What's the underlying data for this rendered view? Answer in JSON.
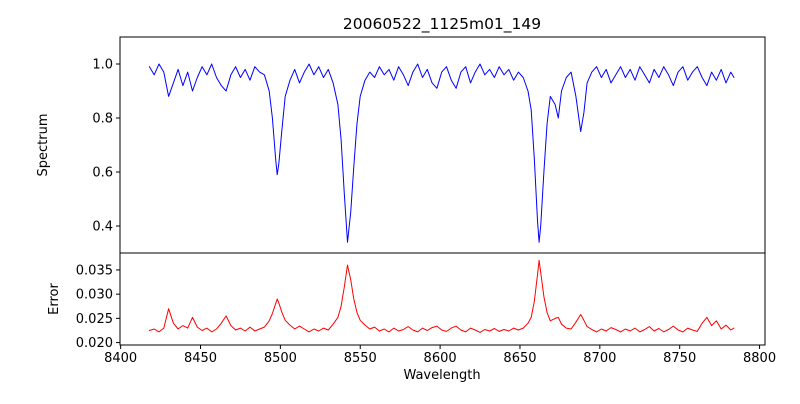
{
  "chart_data": {
    "type": "line",
    "title": "20060522_1125m01_149",
    "xlabel": "Wavelength",
    "xlim": [
      8399.6,
      8803.4
    ],
    "xticks": [
      8400,
      8450,
      8500,
      8550,
      8600,
      8650,
      8700,
      8750,
      8800
    ],
    "xtick_labels": [
      "8400",
      "8450",
      "8500",
      "8550",
      "8600",
      "8650",
      "8700",
      "8750",
      "8800"
    ],
    "legend": "none",
    "grid": false,
    "x": [
      8418,
      8421,
      8424,
      8427,
      8430,
      8433,
      8436,
      8439,
      8442,
      8445,
      8448,
      8451,
      8454,
      8457,
      8460,
      8463,
      8466,
      8469,
      8472,
      8475,
      8478,
      8481,
      8484,
      8487,
      8490,
      8493,
      8495,
      8497,
      8498,
      8499,
      8501,
      8503,
      8506,
      8509,
      8512,
      8515,
      8518,
      8521,
      8524,
      8527,
      8530,
      8533,
      8536,
      8538,
      8540,
      8542,
      8544,
      8546,
      8548,
      8550,
      8553,
      8556,
      8559,
      8562,
      8565,
      8568,
      8571,
      8574,
      8577,
      8580,
      8583,
      8586,
      8589,
      8592,
      8595,
      8598,
      8601,
      8604,
      8607,
      8610,
      8613,
      8616,
      8619,
      8622,
      8625,
      8628,
      8631,
      8634,
      8637,
      8640,
      8643,
      8646,
      8649,
      8652,
      8655,
      8657,
      8659,
      8661,
      8662,
      8663,
      8665,
      8667,
      8669,
      8672,
      8674,
      8676,
      8679,
      8682,
      8685,
      8688,
      8690,
      8692,
      8695,
      8698,
      8701,
      8704,
      8707,
      8710,
      8713,
      8716,
      8719,
      8722,
      8725,
      8728,
      8731,
      8734,
      8737,
      8740,
      8743,
      8746,
      8749,
      8752,
      8755,
      8758,
      8761,
      8764,
      8767,
      8770,
      8773,
      8776,
      8779,
      8782,
      8784
    ],
    "panels": [
      {
        "name": "spectrum",
        "ylabel": "Spectrum",
        "color": "#0000ff",
        "ylim": [
          0.3,
          1.1
        ],
        "yticks": [
          0.4,
          0.6,
          0.8,
          1.0
        ],
        "ytick_labels": [
          "0.4",
          "0.6",
          "0.8",
          "1.0"
        ],
        "absorption_line_centers": [
          8498,
          8542,
          8662
        ],
        "values": [
          0.99,
          0.96,
          1.0,
          0.97,
          0.88,
          0.93,
          0.98,
          0.92,
          0.97,
          0.9,
          0.95,
          0.99,
          0.96,
          1.0,
          0.95,
          0.92,
          0.9,
          0.96,
          0.99,
          0.95,
          0.98,
          0.94,
          0.99,
          0.97,
          0.96,
          0.9,
          0.8,
          0.65,
          0.59,
          0.63,
          0.76,
          0.88,
          0.94,
          0.98,
          0.93,
          0.97,
          1.0,
          0.96,
          0.99,
          0.95,
          0.98,
          0.93,
          0.85,
          0.72,
          0.52,
          0.34,
          0.45,
          0.62,
          0.78,
          0.88,
          0.94,
          0.97,
          0.95,
          0.99,
          0.96,
          0.98,
          0.94,
          0.99,
          0.96,
          0.92,
          0.97,
          1.0,
          0.95,
          0.98,
          0.93,
          0.91,
          0.97,
          0.99,
          0.94,
          0.91,
          0.97,
          0.99,
          0.93,
          0.97,
          1.0,
          0.96,
          0.98,
          0.95,
          0.99,
          0.96,
          0.98,
          0.94,
          0.97,
          0.95,
          0.9,
          0.83,
          0.65,
          0.42,
          0.34,
          0.4,
          0.6,
          0.78,
          0.88,
          0.85,
          0.8,
          0.9,
          0.95,
          0.97,
          0.88,
          0.75,
          0.82,
          0.93,
          0.97,
          0.99,
          0.95,
          0.98,
          0.93,
          0.96,
          0.99,
          0.95,
          0.98,
          0.94,
          0.99,
          0.96,
          0.93,
          0.98,
          0.95,
          0.99,
          0.96,
          0.92,
          0.97,
          0.99,
          0.94,
          0.97,
          0.99,
          0.95,
          0.92,
          0.97,
          0.94,
          0.98,
          0.93,
          0.97,
          0.95
        ]
      },
      {
        "name": "error",
        "ylabel": "Error",
        "color": "#ff0000",
        "ylim": [
          0.0195,
          0.0385
        ],
        "yticks": [
          0.02,
          0.025,
          0.03,
          0.035
        ],
        "ytick_labels": [
          "0.020",
          "0.025",
          "0.030",
          "0.035"
        ],
        "values": [
          0.0225,
          0.0228,
          0.0222,
          0.023,
          0.027,
          0.024,
          0.0228,
          0.0235,
          0.023,
          0.0252,
          0.0232,
          0.0225,
          0.023,
          0.0222,
          0.0228,
          0.024,
          0.0255,
          0.0235,
          0.0226,
          0.023,
          0.0224,
          0.0232,
          0.0224,
          0.0228,
          0.0232,
          0.0245,
          0.026,
          0.028,
          0.029,
          0.0282,
          0.0262,
          0.0246,
          0.0236,
          0.0228,
          0.0234,
          0.0228,
          0.0222,
          0.0228,
          0.0224,
          0.023,
          0.0226,
          0.0238,
          0.0252,
          0.0275,
          0.0315,
          0.036,
          0.033,
          0.029,
          0.0262,
          0.0246,
          0.0236,
          0.0228,
          0.0232,
          0.0224,
          0.0228,
          0.0222,
          0.023,
          0.0224,
          0.0227,
          0.0233,
          0.0226,
          0.0222,
          0.023,
          0.0225,
          0.0231,
          0.0234,
          0.0226,
          0.0223,
          0.023,
          0.0234,
          0.0226,
          0.0222,
          0.023,
          0.0226,
          0.0221,
          0.0227,
          0.0224,
          0.0229,
          0.0223,
          0.0227,
          0.0224,
          0.023,
          0.0226,
          0.023,
          0.024,
          0.0252,
          0.0285,
          0.034,
          0.037,
          0.0345,
          0.0295,
          0.0262,
          0.0245,
          0.025,
          0.0252,
          0.0238,
          0.023,
          0.0228,
          0.0242,
          0.0258,
          0.0246,
          0.0233,
          0.0227,
          0.0222,
          0.0228,
          0.0224,
          0.0231,
          0.0227,
          0.0222,
          0.0228,
          0.0224,
          0.023,
          0.0222,
          0.0227,
          0.0233,
          0.0224,
          0.0229,
          0.0222,
          0.0227,
          0.0234,
          0.0226,
          0.0222,
          0.023,
          0.0226,
          0.0223,
          0.024,
          0.0252,
          0.0235,
          0.0245,
          0.0228,
          0.0236,
          0.0226,
          0.023
        ]
      }
    ]
  }
}
